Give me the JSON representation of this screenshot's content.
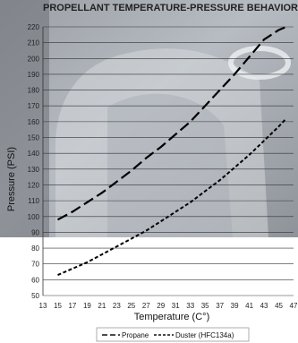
{
  "chart_data": {
    "type": "line",
    "title": "PROPELLANT TEMPERATURE-PRESSURE BEHAVIOR",
    "xlabel": "Temperature (C°)",
    "ylabel": "Pressure (PSI)",
    "xlim": [
      13,
      47
    ],
    "ylim": [
      50,
      220
    ],
    "xticks": [
      13,
      15,
      17,
      19,
      21,
      23,
      25,
      27,
      29,
      31,
      33,
      35,
      37,
      39,
      41,
      43,
      45,
      47
    ],
    "yticks": [
      50,
      60,
      70,
      80,
      90,
      100,
      110,
      120,
      130,
      140,
      150,
      160,
      170,
      180,
      190,
      200,
      210,
      220
    ],
    "grid": "horizontal",
    "legend_position": "bottom",
    "series": [
      {
        "name": "Propane",
        "style": "dashed-long",
        "x": [
          15,
          17,
          19,
          21,
          23,
          25,
          27,
          29,
          31,
          33,
          35,
          37,
          39,
          41,
          43,
          45,
          46
        ],
        "y": [
          98,
          103,
          109,
          115,
          122,
          129,
          137,
          144,
          152,
          160,
          170,
          180,
          190,
          201,
          212,
          218,
          220
        ]
      },
      {
        "name": "Duster (HFC134a)",
        "style": "dashed-short",
        "x": [
          15,
          17,
          19,
          21,
          23,
          25,
          27,
          29,
          31,
          33,
          35,
          37,
          39,
          41,
          43,
          45,
          46
        ],
        "y": [
          63,
          67,
          71,
          76,
          81,
          86,
          91,
          97,
          103,
          109,
          116,
          123,
          131,
          139,
          148,
          157,
          162
        ]
      }
    ]
  }
}
